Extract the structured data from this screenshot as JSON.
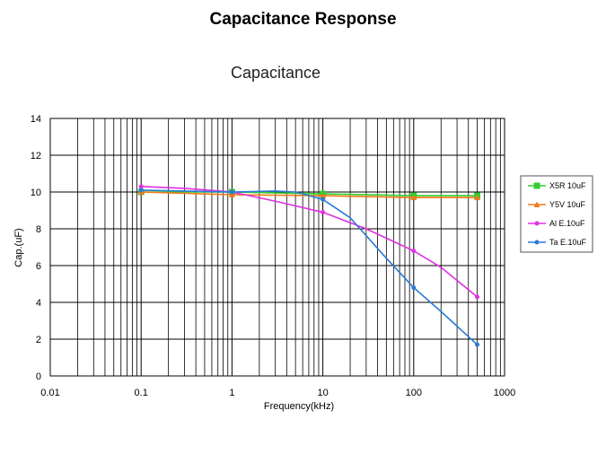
{
  "page": {
    "title": "Capacitance Response"
  },
  "chart_data": {
    "type": "line",
    "title": "Capacitance",
    "xlabel": "Frequency(kHz)",
    "ylabel": "Cap.(uF)",
    "xscale": "log",
    "xlim": [
      0.01,
      1000
    ],
    "ylim": [
      0,
      14
    ],
    "x_ticks": [
      0.01,
      0.1,
      1,
      10,
      100,
      1000
    ],
    "x_tick_labels": [
      "0.01",
      "0.1",
      "1",
      "10",
      "100",
      "1000"
    ],
    "y_ticks": [
      0,
      2,
      4,
      6,
      8,
      10,
      12,
      14
    ],
    "y_tick_labels": [
      "0",
      "2",
      "4",
      "6",
      "8",
      "10",
      "12",
      "14"
    ],
    "grid": true,
    "legend_position": "right",
    "series": [
      {
        "name": "X5R 10uF",
        "color": "#33cc33",
        "marker": "square",
        "x": [
          0.1,
          1,
          10,
          100,
          500
        ],
        "y": [
          10.0,
          10.0,
          9.9,
          9.8,
          9.8
        ]
      },
      {
        "name": "Y5V 10uF",
        "color": "#f07a1a",
        "marker": "triangle",
        "x": [
          0.1,
          1,
          10,
          100,
          500
        ],
        "y": [
          10.0,
          9.85,
          9.8,
          9.7,
          9.7
        ]
      },
      {
        "name": "Al E.10uF",
        "color": "#e030e0",
        "marker": "dot",
        "x": [
          0.1,
          0.3,
          1,
          3,
          10,
          30,
          100,
          200,
          500
        ],
        "y": [
          10.3,
          10.2,
          10.0,
          9.5,
          8.9,
          8.0,
          6.8,
          5.9,
          4.3
        ]
      },
      {
        "name": "Ta E.10uF",
        "color": "#2a7ad6",
        "marker": "dot",
        "x": [
          0.1,
          1,
          3,
          5,
          10,
          20,
          50,
          100,
          200,
          500
        ],
        "y": [
          10.1,
          10.0,
          10.05,
          10.0,
          9.6,
          8.6,
          6.4,
          4.8,
          3.5,
          1.7
        ]
      }
    ]
  }
}
